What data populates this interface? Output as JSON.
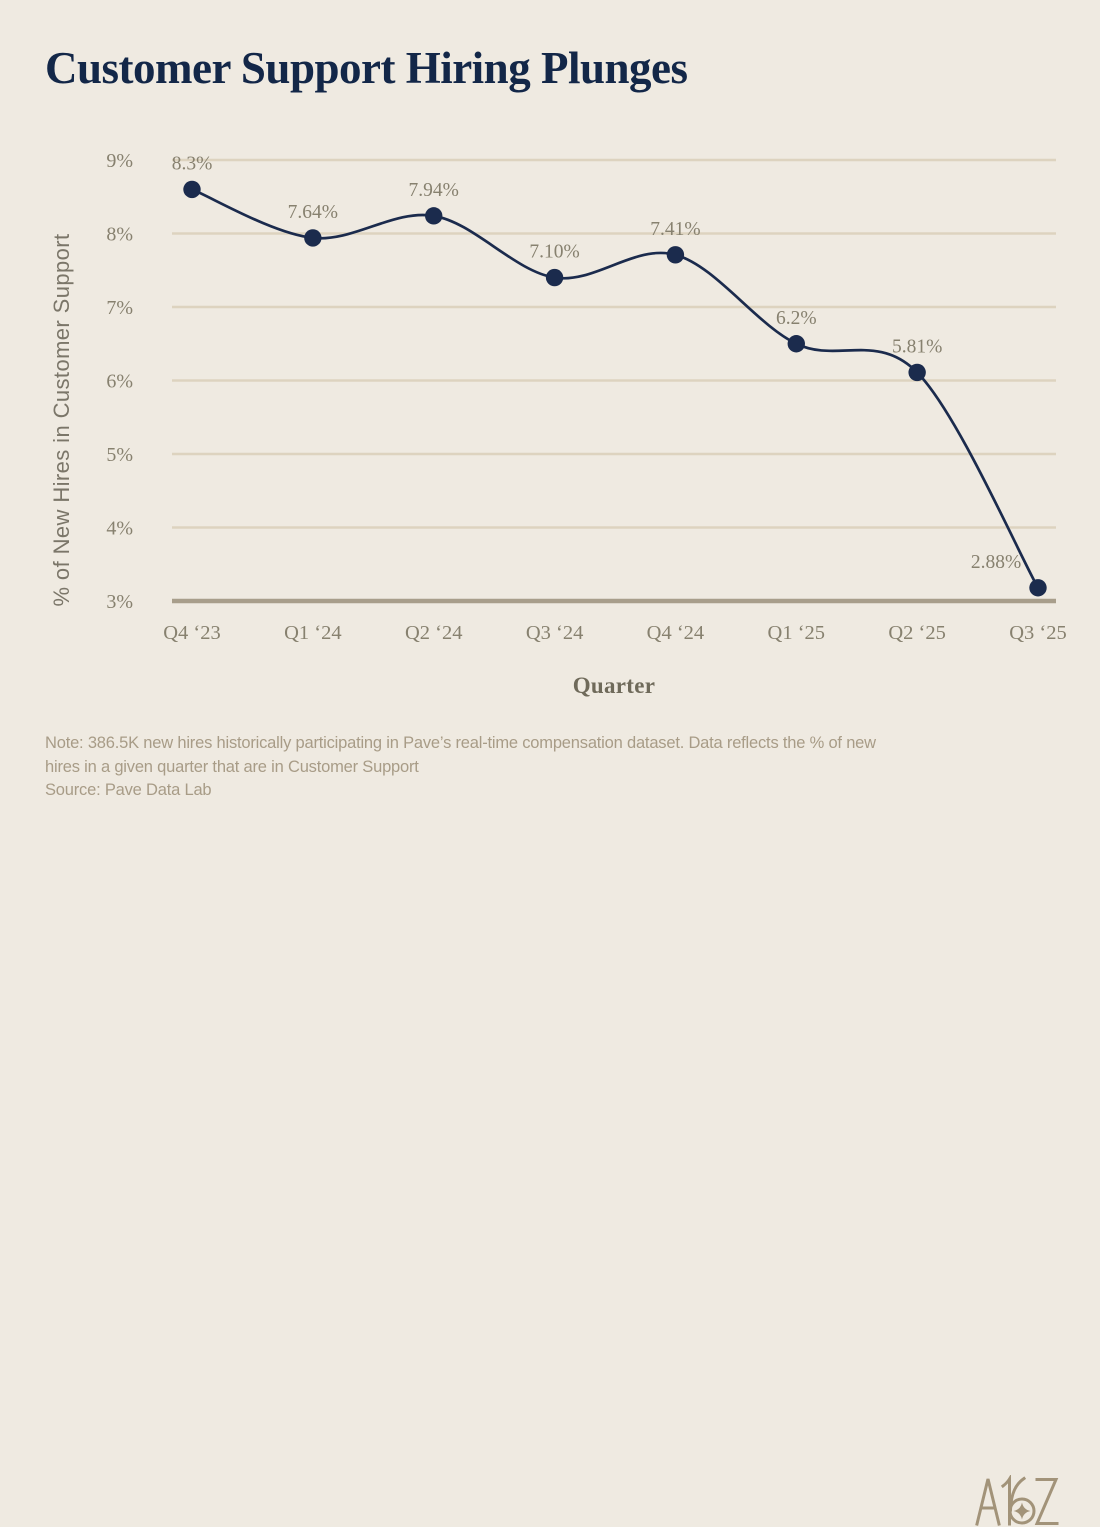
{
  "title": "Customer Support Hiring Plunges",
  "chart_data": {
    "type": "line",
    "title": "Customer Support Hiring Plunges",
    "categories": [
      "Q4 ‘23",
      "Q1 ‘24",
      "Q2 ‘24",
      "Q3 ‘24",
      "Q4 ‘24",
      "Q1 ‘25",
      "Q2 ‘25",
      "Q3 ‘25"
    ],
    "series": [
      {
        "name": "% of New Hires in Customer Support",
        "values": [
          8.3,
          7.64,
          7.94,
          7.1,
          7.41,
          6.2,
          5.81,
          2.88
        ],
        "point_labels": [
          "8.3%",
          "7.64%",
          "7.94%",
          "7.10%",
          "7.41%",
          "6.2%",
          "5.81%",
          "2.88%"
        ]
      }
    ],
    "xlabel": "Quarter",
    "ylabel": "% of New Hires in Customer Support",
    "ylim": [
      3,
      9
    ],
    "ytick_values": [
      9,
      8,
      7,
      6,
      5,
      4,
      3
    ],
    "ytick_labels": [
      "9%",
      "8%",
      "7%",
      "6%",
      "5%",
      "4%",
      "3%"
    ],
    "grid": "horizontal",
    "legend": "none",
    "marker": "filled-circle"
  },
  "theme": {
    "background": "#EFEAE1",
    "title_color": "#132748",
    "line_color": "#1B2B4D",
    "marker_color": "#1B2B4D",
    "gridline_color": "#DDD3BF",
    "axis_line_color": "#A89E8B",
    "tick_label_color": "#87816F",
    "data_label_color": "#87816F",
    "y_axis_title_color": "#7B7669",
    "x_axis_title_color": "#6F6A5A",
    "note_color": "#A89C87",
    "logo_color": "#A29379"
  },
  "footer": {
    "note": "Note: 386.5K new hires historically participating in Pave’s real-time compensation dataset. Data reflects the % of new hires in a given quarter that are in Customer Support",
    "source": "Source: Pave Data Lab",
    "logo_text": "A16Z"
  }
}
